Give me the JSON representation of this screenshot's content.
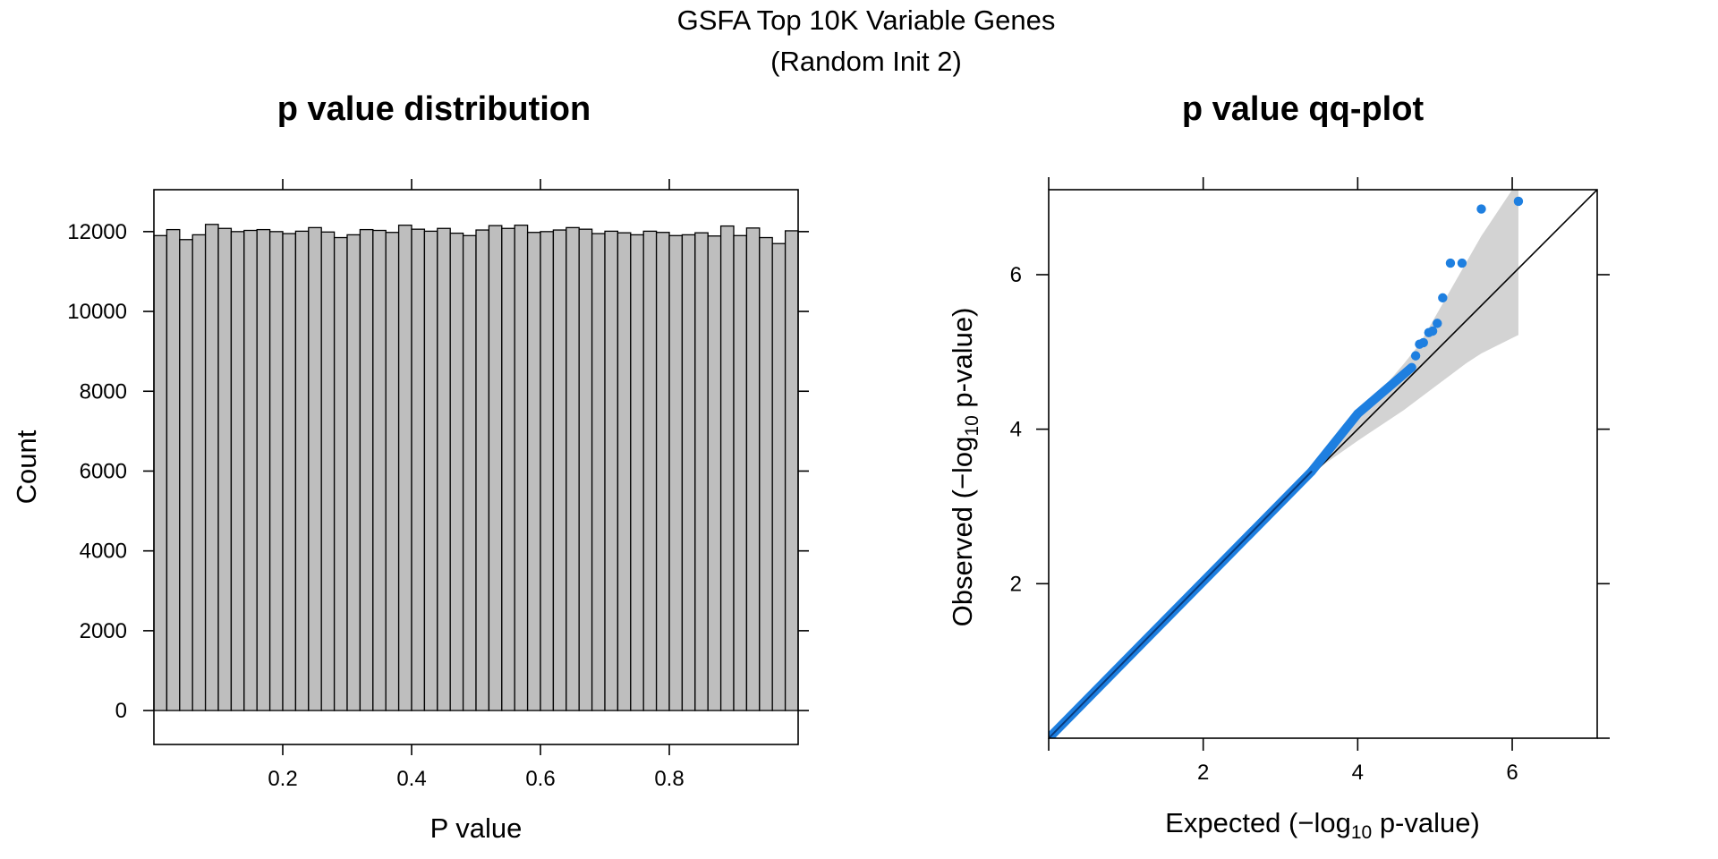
{
  "figure": {
    "title_line1": "GSFA Top 10K Variable Genes",
    "title_line2": "(Random Init 2)"
  },
  "chart_data": [
    {
      "type": "bar",
      "title": "p value distribution",
      "xlabel": "P value",
      "ylabel": "Count",
      "xlim": [
        0,
        1
      ],
      "ylim": [
        -850,
        13050
      ],
      "bin_width": 0.02,
      "x_ticks": [
        "0.2",
        "0.4",
        "0.6",
        "0.8"
      ],
      "y_ticks": [
        "0",
        "2000",
        "4000",
        "6000",
        "8000",
        "10000",
        "12000"
      ],
      "values": [
        11900,
        12050,
        11800,
        11920,
        12180,
        12080,
        12000,
        12030,
        12050,
        12000,
        11950,
        12010,
        12100,
        11990,
        11850,
        11920,
        12050,
        12030,
        11980,
        12160,
        12060,
        12010,
        12080,
        11960,
        11900,
        12040,
        12150,
        12080,
        12160,
        11980,
        12000,
        12040,
        12100,
        12060,
        11950,
        12010,
        11970,
        11920,
        12010,
        11980,
        11900,
        11920,
        11970,
        11890,
        12140,
        11900,
        12090,
        11850,
        11700,
        12020,
        11980
      ],
      "bar_color": "#bebebe"
    },
    {
      "type": "scatter",
      "title": "p value qq-plot",
      "xlabel": "Expected (−log",
      "ylabel": "Observed (−log",
      "label_subscript": "10",
      "label_suffix": " p-value)",
      "xlim": [
        0,
        7.1
      ],
      "ylim": [
        0,
        7.1
      ],
      "x_ticks": [
        "2",
        "4",
        "6"
      ],
      "y_ticks": [
        "2",
        "4",
        "6"
      ],
      "point_color": "#1e7fe0",
      "band_color": "#d3d3d3",
      "reference_line": "y = x",
      "confidence_band": {
        "x": [
          3.5,
          4.0,
          4.3,
          4.6,
          4.8,
          5.0,
          5.2,
          5.4,
          5.6,
          5.8,
          6.0,
          6.08
        ],
        "lower": [
          3.5,
          3.85,
          4.05,
          4.25,
          4.4,
          4.55,
          4.7,
          4.85,
          4.98,
          5.08,
          5.18,
          5.22
        ],
        "upper": [
          3.5,
          4.15,
          4.5,
          4.85,
          5.1,
          5.45,
          5.8,
          6.15,
          6.5,
          6.8,
          7.1,
          7.1
        ]
      },
      "dense_segments": [
        {
          "x": [
            0.0,
            3.4
          ],
          "y": [
            0.0,
            3.45
          ]
        },
        {
          "x": [
            3.4,
            4.0
          ],
          "y": [
            3.45,
            4.2
          ]
        },
        {
          "x": [
            4.0,
            4.7
          ],
          "y": [
            4.2,
            4.8
          ]
        }
      ],
      "points": [
        {
          "x": 4.75,
          "y": 4.95
        },
        {
          "x": 4.8,
          "y": 5.1
        },
        {
          "x": 4.85,
          "y": 5.12
        },
        {
          "x": 4.92,
          "y": 5.25
        },
        {
          "x": 4.97,
          "y": 5.27
        },
        {
          "x": 5.03,
          "y": 5.37
        },
        {
          "x": 5.1,
          "y": 5.7
        },
        {
          "x": 5.2,
          "y": 6.15
        },
        {
          "x": 5.35,
          "y": 6.15
        },
        {
          "x": 5.6,
          "y": 6.85
        },
        {
          "x": 6.08,
          "y": 6.95
        }
      ]
    }
  ]
}
